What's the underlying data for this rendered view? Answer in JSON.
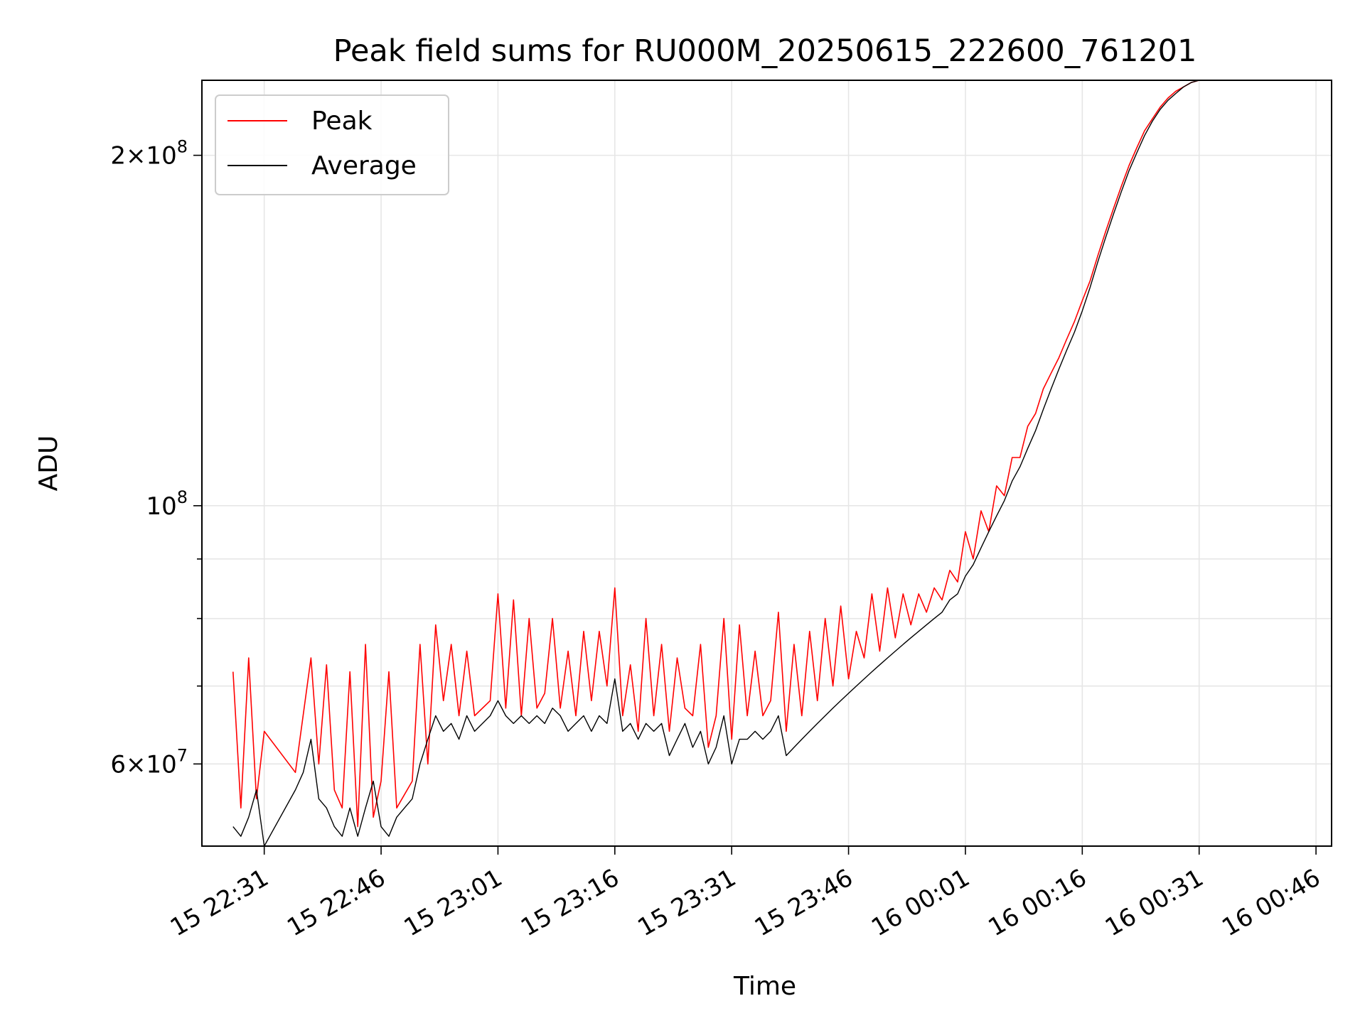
{
  "chart_data": {
    "type": "line",
    "title": "Peak field sums for RU000M_20250615_222600_761201",
    "xlabel": "Time",
    "ylabel": "ADU",
    "yscale": "log",
    "xlim": [
      "15 22:23",
      "16 00:48"
    ],
    "ylim": [
      51000000,
      232000000
    ],
    "x_ticks": [
      "15 22:31",
      "15 22:46",
      "15 23:01",
      "15 23:16",
      "15 23:31",
      "15 23:46",
      "16 00:01",
      "16 00:16",
      "16 00:31",
      "16 00:46"
    ],
    "y_ticks": [
      {
        "label_base": "2×10",
        "label_exp": "8",
        "value": 200000000
      },
      {
        "label_base": "10",
        "label_exp": "8",
        "value": 100000000
      },
      {
        "label_base": "6×10",
        "label_exp": "7",
        "value": 60000000
      }
    ],
    "y_minor_ticks": [
      50000000,
      70000000,
      80000000,
      90000000
    ],
    "grid": true,
    "legend_position": "top-left",
    "series": [
      {
        "name": "Peak",
        "color": "#ff0000",
        "points": [
          [
            "15 22:27",
            72000000
          ],
          [
            "15 22:28",
            55000000
          ],
          [
            "15 22:29",
            74000000
          ],
          [
            "15 22:30",
            56000000
          ],
          [
            "15 22:31",
            64000000
          ],
          [
            "15 22:35",
            59000000
          ],
          [
            "15 22:37",
            74000000
          ],
          [
            "15 22:38",
            60000000
          ],
          [
            "15 22:39",
            73000000
          ],
          [
            "15 22:40",
            57000000
          ],
          [
            "15 22:41",
            55000000
          ],
          [
            "15 22:42",
            72000000
          ],
          [
            "15 22:43",
            53000000
          ],
          [
            "15 22:44",
            76000000
          ],
          [
            "15 22:45",
            54000000
          ],
          [
            "15 22:46",
            58000000
          ],
          [
            "15 22:47",
            72000000
          ],
          [
            "15 22:48",
            55000000
          ],
          [
            "15 22:50",
            58000000
          ],
          [
            "15 22:51",
            76000000
          ],
          [
            "15 22:52",
            60000000
          ],
          [
            "15 22:53",
            79000000
          ],
          [
            "15 22:54",
            68000000
          ],
          [
            "15 22:55",
            76000000
          ],
          [
            "15 22:56",
            66000000
          ],
          [
            "15 22:57",
            75000000
          ],
          [
            "15 22:58",
            66000000
          ],
          [
            "15 23:00",
            68000000
          ],
          [
            "15 23:01",
            84000000
          ],
          [
            "15 23:02",
            67000000
          ],
          [
            "15 23:03",
            83000000
          ],
          [
            "15 23:04",
            66000000
          ],
          [
            "15 23:05",
            80000000
          ],
          [
            "15 23:06",
            67000000
          ],
          [
            "15 23:07",
            69000000
          ],
          [
            "15 23:08",
            80000000
          ],
          [
            "15 23:09",
            67000000
          ],
          [
            "15 23:10",
            75000000
          ],
          [
            "15 23:11",
            66000000
          ],
          [
            "15 23:12",
            78000000
          ],
          [
            "15 23:13",
            68000000
          ],
          [
            "15 23:14",
            78000000
          ],
          [
            "15 23:15",
            70000000
          ],
          [
            "15 23:16",
            85000000
          ],
          [
            "15 23:17",
            66000000
          ],
          [
            "15 23:18",
            73000000
          ],
          [
            "15 23:19",
            64000000
          ],
          [
            "15 23:20",
            80000000
          ],
          [
            "15 23:21",
            66000000
          ],
          [
            "15 23:22",
            76000000
          ],
          [
            "15 23:23",
            64000000
          ],
          [
            "15 23:24",
            74000000
          ],
          [
            "15 23:25",
            67000000
          ],
          [
            "15 23:26",
            66000000
          ],
          [
            "15 23:27",
            76000000
          ],
          [
            "15 23:28",
            62000000
          ],
          [
            "15 23:29",
            66000000
          ],
          [
            "15 23:30",
            80000000
          ],
          [
            "15 23:31",
            63000000
          ],
          [
            "15 23:32",
            79000000
          ],
          [
            "15 23:33",
            66000000
          ],
          [
            "15 23:34",
            75000000
          ],
          [
            "15 23:35",
            66000000
          ],
          [
            "15 23:36",
            68000000
          ],
          [
            "15 23:37",
            81000000
          ],
          [
            "15 23:38",
            64000000
          ],
          [
            "15 23:39",
            76000000
          ],
          [
            "15 23:40",
            66000000
          ],
          [
            "15 23:41",
            78000000
          ],
          [
            "15 23:42",
            68000000
          ],
          [
            "15 23:43",
            80000000
          ],
          [
            "15 23:44",
            70000000
          ],
          [
            "15 23:45",
            82000000
          ],
          [
            "15 23:46",
            71000000
          ],
          [
            "15 23:47",
            78000000
          ],
          [
            "15 23:48",
            74000000
          ],
          [
            "15 23:49",
            84000000
          ],
          [
            "15 23:50",
            75000000
          ],
          [
            "15 23:51",
            85000000
          ],
          [
            "15 23:52",
            77000000
          ],
          [
            "15 23:53",
            84000000
          ],
          [
            "15 23:54",
            79000000
          ],
          [
            "15 23:55",
            84000000
          ],
          [
            "15 23:56",
            81000000
          ],
          [
            "15 23:57",
            85000000
          ],
          [
            "15 23:58",
            83000000
          ],
          [
            "15 23:59",
            88000000
          ],
          [
            "16 00:00",
            86000000
          ],
          [
            "16 00:01",
            95000000
          ],
          [
            "16 00:02",
            90000000
          ],
          [
            "16 00:03",
            99000000
          ],
          [
            "16 00:04",
            95000000
          ],
          [
            "16 00:05",
            104000000
          ],
          [
            "16 00:06",
            102000000
          ],
          [
            "16 00:07",
            110000000
          ],
          [
            "16 00:08",
            110000000
          ],
          [
            "16 00:09",
            117000000
          ],
          [
            "16 00:10",
            120000000
          ],
          [
            "16 00:11",
            126000000
          ],
          [
            "16 00:12",
            130000000
          ],
          [
            "16 00:13",
            134000000
          ],
          [
            "16 00:14",
            139000000
          ],
          [
            "16 00:15",
            144000000
          ],
          [
            "16 00:16",
            150000000
          ],
          [
            "16 00:17",
            156000000
          ],
          [
            "16 00:18",
            164000000
          ],
          [
            "16 00:19",
            172000000
          ],
          [
            "16 00:20",
            180000000
          ],
          [
            "16 00:21",
            188000000
          ],
          [
            "16 00:22",
            196000000
          ],
          [
            "16 00:23",
            203000000
          ],
          [
            "16 00:24",
            210000000
          ],
          [
            "16 00:25",
            215000000
          ],
          [
            "16 00:26",
            220000000
          ],
          [
            "16 00:27",
            224000000
          ],
          [
            "16 00:28",
            227000000
          ],
          [
            "16 00:29",
            229000000
          ],
          [
            "16 00:30",
            231000000
          ],
          [
            "16 00:31",
            232000000
          ],
          [
            "16 00:35",
            232000000
          ]
        ]
      },
      {
        "name": "Average",
        "color": "#000000",
        "points": [
          [
            "15 22:27",
            53000000
          ],
          [
            "15 22:28",
            52000000
          ],
          [
            "15 22:29",
            54000000
          ],
          [
            "15 22:30",
            57000000
          ],
          [
            "15 22:31",
            51000000
          ],
          [
            "15 22:35",
            57000000
          ],
          [
            "15 22:36",
            59000000
          ],
          [
            "15 22:37",
            63000000
          ],
          [
            "15 22:38",
            56000000
          ],
          [
            "15 22:39",
            55000000
          ],
          [
            "15 22:40",
            53000000
          ],
          [
            "15 22:41",
            52000000
          ],
          [
            "15 22:42",
            55000000
          ],
          [
            "15 22:43",
            52000000
          ],
          [
            "15 22:44",
            55000000
          ],
          [
            "15 22:45",
            58000000
          ],
          [
            "15 22:46",
            53000000
          ],
          [
            "15 22:47",
            52000000
          ],
          [
            "15 22:48",
            54000000
          ],
          [
            "15 22:49",
            55000000
          ],
          [
            "15 22:50",
            56000000
          ],
          [
            "15 22:51",
            60000000
          ],
          [
            "15 22:52",
            63000000
          ],
          [
            "15 22:53",
            66000000
          ],
          [
            "15 22:54",
            64000000
          ],
          [
            "15 22:55",
            65000000
          ],
          [
            "15 22:56",
            63000000
          ],
          [
            "15 22:57",
            66000000
          ],
          [
            "15 22:58",
            64000000
          ],
          [
            "15 23:00",
            66000000
          ],
          [
            "15 23:01",
            68000000
          ],
          [
            "15 23:02",
            66000000
          ],
          [
            "15 23:03",
            65000000
          ],
          [
            "15 23:04",
            66000000
          ],
          [
            "15 23:05",
            65000000
          ],
          [
            "15 23:06",
            66000000
          ],
          [
            "15 23:07",
            65000000
          ],
          [
            "15 23:08",
            67000000
          ],
          [
            "15 23:09",
            66000000
          ],
          [
            "15 23:10",
            64000000
          ],
          [
            "15 23:11",
            65000000
          ],
          [
            "15 23:12",
            66000000
          ],
          [
            "15 23:13",
            64000000
          ],
          [
            "15 23:14",
            66000000
          ],
          [
            "15 23:15",
            65000000
          ],
          [
            "15 23:16",
            71000000
          ],
          [
            "15 23:17",
            64000000
          ],
          [
            "15 23:18",
            65000000
          ],
          [
            "15 23:19",
            63000000
          ],
          [
            "15 23:20",
            65000000
          ],
          [
            "15 23:21",
            64000000
          ],
          [
            "15 23:22",
            65000000
          ],
          [
            "15 23:23",
            61000000
          ],
          [
            "15 23:24",
            63000000
          ],
          [
            "15 23:25",
            65000000
          ],
          [
            "15 23:26",
            62000000
          ],
          [
            "15 23:27",
            64000000
          ],
          [
            "15 23:28",
            60000000
          ],
          [
            "15 23:29",
            62000000
          ],
          [
            "15 23:30",
            66000000
          ],
          [
            "15 23:31",
            60000000
          ],
          [
            "15 23:32",
            63000000
          ],
          [
            "15 23:33",
            63000000
          ],
          [
            "15 23:34",
            64000000
          ],
          [
            "15 23:35",
            63000000
          ],
          [
            "15 23:36",
            64000000
          ],
          [
            "15 23:37",
            66000000
          ],
          [
            "15 23:38",
            61000000
          ],
          [
            "15 23:39",
            62000000
          ],
          [
            "15 23:40",
            63000000
          ],
          [
            "15 23:41",
            64000000
          ],
          [
            "15 23:42",
            65000000
          ],
          [
            "15 23:43",
            66000000
          ],
          [
            "15 23:44",
            67000000
          ],
          [
            "15 23:45",
            68000000
          ],
          [
            "15 23:46",
            69000000
          ],
          [
            "15 23:47",
            70000000
          ],
          [
            "15 23:48",
            71000000
          ],
          [
            "15 23:49",
            72000000
          ],
          [
            "15 23:50",
            73000000
          ],
          [
            "15 23:51",
            74000000
          ],
          [
            "15 23:52",
            75000000
          ],
          [
            "15 23:53",
            76000000
          ],
          [
            "15 23:54",
            77000000
          ],
          [
            "15 23:55",
            78000000
          ],
          [
            "15 23:56",
            79000000
          ],
          [
            "15 23:57",
            80000000
          ],
          [
            "15 23:58",
            81000000
          ],
          [
            "15 23:59",
            83000000
          ],
          [
            "16 00:00",
            84000000
          ],
          [
            "16 00:01",
            87000000
          ],
          [
            "16 00:02",
            89000000
          ],
          [
            "16 00:03",
            92000000
          ],
          [
            "16 00:04",
            95000000
          ],
          [
            "16 00:05",
            98000000
          ],
          [
            "16 00:06",
            101000000
          ],
          [
            "16 00:07",
            105000000
          ],
          [
            "16 00:08",
            108000000
          ],
          [
            "16 00:09",
            112000000
          ],
          [
            "16 00:10",
            116000000
          ],
          [
            "16 00:11",
            121000000
          ],
          [
            "16 00:12",
            126000000
          ],
          [
            "16 00:13",
            131000000
          ],
          [
            "16 00:14",
            136000000
          ],
          [
            "16 00:15",
            141000000
          ],
          [
            "16 00:16",
            147000000
          ],
          [
            "16 00:17",
            154000000
          ],
          [
            "16 00:18",
            162000000
          ],
          [
            "16 00:19",
            170000000
          ],
          [
            "16 00:20",
            178000000
          ],
          [
            "16 00:21",
            186000000
          ],
          [
            "16 00:22",
            194000000
          ],
          [
            "16 00:23",
            201000000
          ],
          [
            "16 00:24",
            208000000
          ],
          [
            "16 00:25",
            214000000
          ],
          [
            "16 00:26",
            219000000
          ],
          [
            "16 00:27",
            223000000
          ],
          [
            "16 00:28",
            226000000
          ],
          [
            "16 00:29",
            229000000
          ],
          [
            "16 00:30",
            231000000
          ],
          [
            "16 00:31",
            232000000
          ],
          [
            "16 00:35",
            232000000
          ]
        ]
      }
    ]
  }
}
